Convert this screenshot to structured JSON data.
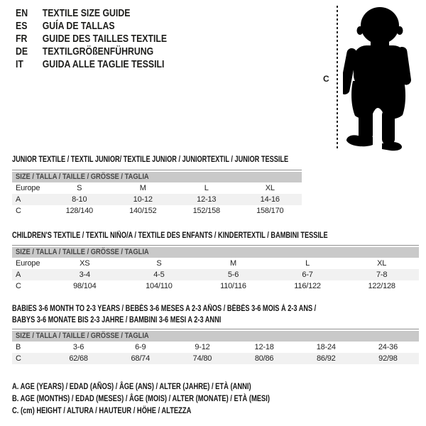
{
  "colors": {
    "size_bar_bg": "#c9c9c9",
    "shaded_row_bg": "#f1f1f1",
    "text": "#1d1d1b"
  },
  "header": {
    "languages": [
      {
        "code": "EN",
        "label": "TEXTILE SIZE GUIDE"
      },
      {
        "code": "ES",
        "label": "GUÍA DE TALLAS"
      },
      {
        "code": "FR",
        "label": "GUIDE DES TAILLES TEXTILE"
      },
      {
        "code": "DE",
        "label": "TEXTILGRÖßENFÜHRUNG"
      },
      {
        "code": "IT",
        "label": "GUIDA ALLE TAGLIE TESSILI"
      }
    ]
  },
  "figure": {
    "label": "C",
    "icon": "toddler-silhouette"
  },
  "sections": [
    {
      "title": "JUNIOR TEXTILE / TEXTIL JUNIOR/ TEXTILE JUNIOR / JUNIORTEXTIL / JUNIOR TESSILE",
      "size_header": "SIZE / TALLA / TAILLE / GRÖSSE / TAGLIA",
      "rows": [
        {
          "label": "Europe",
          "cells": [
            "S",
            "M",
            "L",
            "XL"
          ]
        },
        {
          "label": "A",
          "cells": [
            "8-10",
            "10-12",
            "12-13",
            "14-16"
          ]
        },
        {
          "label": "C",
          "cells": [
            "128/140",
            "140/152",
            "152/158",
            "158/170"
          ]
        }
      ]
    },
    {
      "title": "CHILDREN'S TEXTILE / TEXTIL NIÑO/A / TEXTILE DES ENFANTS / KINDERTEXTIL / BAMBINI TESSILE",
      "size_header": "SIZE / TALLA / TAILLE / GRÖSSE / TAGLIA",
      "rows": [
        {
          "label": "Europe",
          "cells": [
            "XS",
            "S",
            "M",
            "L",
            "XL"
          ]
        },
        {
          "label": "A",
          "cells": [
            "3-4",
            "4-5",
            "5-6",
            "6-7",
            "7-8"
          ]
        },
        {
          "label": "C",
          "cells": [
            "98/104",
            "104/110",
            "110/116",
            "116/122",
            "122/128"
          ]
        }
      ]
    },
    {
      "title": "BABIES 3-6 MONTH TO 2-3 YEARS / BEBÉS 3-6 MESES A 2-3 AÑOS / BÉBÉS 3-6 MOIS À 2-3 ANS /\nBABYS 3-6 MONATE BIS 2-3 JAHRE / BAMBINI 3-6 MESI A 2-3 ANNI",
      "size_header": "SIZE / TALLA / TAILLE / GRÖSSE / TAGLIA",
      "rows": [
        {
          "label": "B",
          "cells": [
            "3-6",
            "6-9",
            "9-12",
            "12-18",
            "18-24",
            "24-36"
          ]
        },
        {
          "label": "C",
          "cells": [
            "62/68",
            "68/74",
            "74/80",
            "80/86",
            "86/92",
            "92/98"
          ]
        }
      ]
    }
  ],
  "footnotes": [
    "A. AGE (YEARS) / EDAD (AÑOS) / ÂGE (ANS) / ALTER (JAHRE) / ETÀ (ANNI)",
    "B. AGE (MONTHS) / EDAD (MESES) / ÂGE (MOIS) / ALTER (MONATE) / ETÀ (MESI)",
    "C. (cm) HEIGHT / ALTURA / HAUTEUR / HÖHE / ALTEZZA"
  ]
}
